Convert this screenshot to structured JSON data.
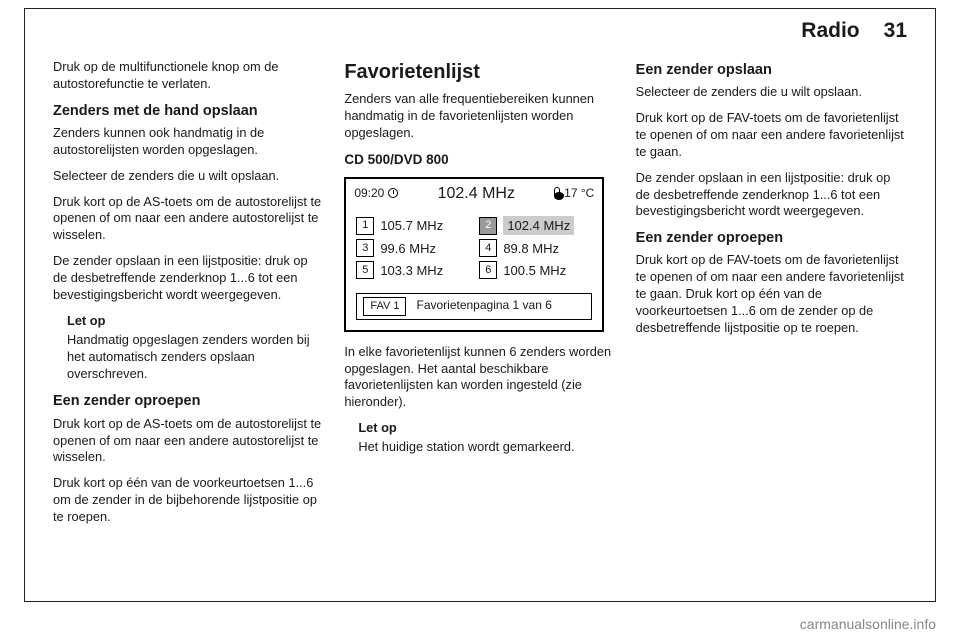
{
  "header": {
    "title": "Radio",
    "page": "31"
  },
  "col1": {
    "p1": "Druk op de multifunctionele knop om de autostorefunctie te verlaten.",
    "h3a": "Zenders met de hand opslaan",
    "p2": "Zenders kunnen ook handmatig in de autostorelijsten worden opgeslagen.",
    "p3": "Selecteer de zenders die u wilt opslaan.",
    "p4": "Druk kort op de AS-toets om de autostorelijst te openen of om naar een andere autostorelijst te wisselen.",
    "p5": "De zender opslaan in een lijstpositie: druk op de desbetreffende zenderknop 1...6 tot een bevestigingsbericht wordt weergegeven.",
    "note_title": "Let op",
    "note_body": "Handmatig opgeslagen zenders worden bij het automatisch zenders opslaan overschreven.",
    "h3b": "Een zender oproepen",
    "p6": "Druk kort op de AS-toets om de autostorelijst te openen of om naar een andere autostorelijst te wisselen.",
    "p7": "Druk kort op één van de voorkeurtoetsen 1...6 om de zender in de bijbehorende lijstpositie op te roepen."
  },
  "col2": {
    "h2": "Favorietenlijst",
    "p1": "Zenders van alle frequentiebereiken kunnen handmatig in de favorietenlijsten worden opgeslagen.",
    "h4": "CD 500/DVD 800",
    "radio": {
      "time": "09:20",
      "freq_current": "102.4 MHz",
      "temp": "17 °C",
      "presets": [
        {
          "n": "1",
          "f": "105.7 MHz",
          "sel": false
        },
        {
          "n": "2",
          "f": "102.4 MHz",
          "sel": true
        },
        {
          "n": "3",
          "f": "99.6 MHz",
          "sel": false
        },
        {
          "n": "4",
          "f": "89.8 MHz",
          "sel": false
        },
        {
          "n": "5",
          "f": "103.3 MHz",
          "sel": false
        },
        {
          "n": "6",
          "f": "100.5 MHz",
          "sel": false
        }
      ],
      "fav_btn": "FAV 1",
      "fav_label": "Favorietenpagina 1 van 6"
    },
    "p2": "In elke favorietenlijst kunnen 6 zenders worden opgeslagen. Het aantal beschikbare favorietenlijsten kan worden ingesteld (zie hieronder).",
    "note_title": "Let op",
    "note_body": "Het huidige station wordt gemarkeerd."
  },
  "col3": {
    "h3a": "Een zender opslaan",
    "p1": "Selecteer de zenders die u wilt opslaan.",
    "p2": "Druk kort op de FAV-toets om de favorietenlijst te openen of om naar een andere favorietenlijst te gaan.",
    "p3": "De zender opslaan in een lijstpositie: druk op de desbetreffende zenderknop 1...6 tot een bevestigingsbericht wordt weergegeven.",
    "h3b": "Een zender oproepen",
    "p4": "Druk kort op de FAV-toets om de favorietenlijst te openen of om naar een andere favorietenlijst te gaan. Druk kort op één van de voorkeurtoetsen 1...6 om de zender op de desbetreffende lijstpositie op te roepen."
  },
  "watermark": "carmanualsonline.info"
}
